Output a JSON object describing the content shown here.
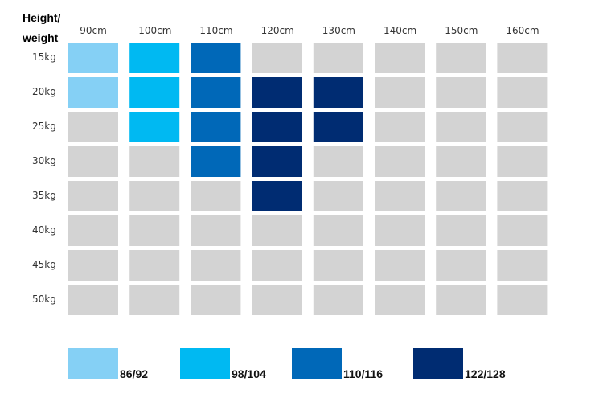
{
  "chart_data": {
    "type": "heatmap",
    "corner_label_line1": "Height/",
    "corner_label_line2": "weight",
    "x_categories": [
      "90cm",
      "100cm",
      "110cm",
      "120cm",
      "130cm",
      "140cm",
      "150cm",
      "160cm"
    ],
    "y_categories": [
      "15kg",
      "20kg",
      "25kg",
      "30kg",
      "35kg",
      "40kg",
      "45kg",
      "50kg"
    ],
    "size_legend": [
      {
        "label": "86/92",
        "color": "#85d0f5"
      },
      {
        "label": "98/104",
        "color": "#00b9f2"
      },
      {
        "label": "110/116",
        "color": "#0068b8"
      },
      {
        "label": "122/128",
        "color": "#002c72"
      }
    ],
    "empty_color": "#d3d3d3",
    "cells": [
      [
        "86/92",
        "98/104",
        "110/116",
        null,
        null,
        null,
        null,
        null
      ],
      [
        "86/92",
        "98/104",
        "110/116",
        "122/128",
        "122/128",
        null,
        null,
        null
      ],
      [
        null,
        "98/104",
        "110/116",
        "122/128",
        "122/128",
        null,
        null,
        null
      ],
      [
        null,
        null,
        "110/116",
        "122/128",
        null,
        null,
        null,
        null
      ],
      [
        null,
        null,
        null,
        "122/128",
        null,
        null,
        null,
        null
      ],
      [
        null,
        null,
        null,
        null,
        null,
        null,
        null,
        null
      ],
      [
        null,
        null,
        null,
        null,
        null,
        null,
        null,
        null
      ],
      [
        null,
        null,
        null,
        null,
        null,
        null,
        null,
        null
      ]
    ]
  }
}
